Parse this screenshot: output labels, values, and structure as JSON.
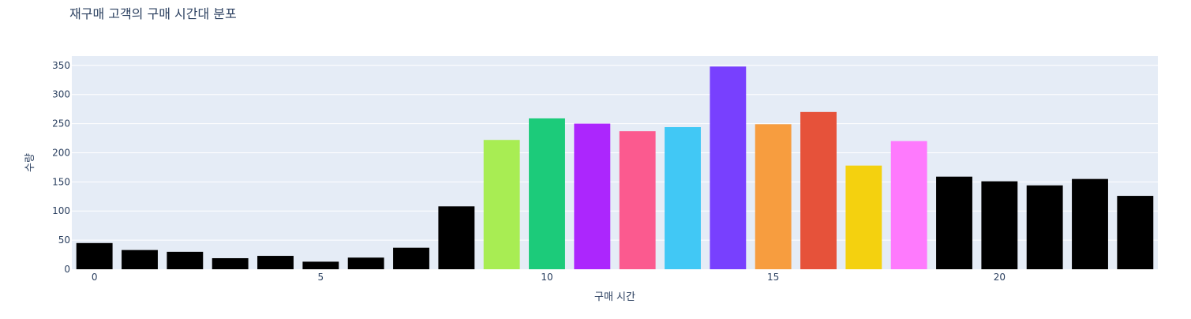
{
  "chart_data": {
    "type": "bar",
    "title": "재구매 고객의 구매 시간대 분포",
    "xlabel": "구매 시간",
    "ylabel": "수량",
    "x": [
      0,
      1,
      2,
      3,
      4,
      5,
      6,
      7,
      8,
      9,
      10,
      11,
      12,
      13,
      14,
      15,
      16,
      17,
      18,
      19,
      20,
      21,
      22,
      23
    ],
    "values": [
      45,
      33,
      30,
      19,
      23,
      13,
      20,
      37,
      108,
      222,
      259,
      250,
      237,
      244,
      348,
      249,
      270,
      178,
      220,
      159,
      151,
      144,
      155,
      126
    ],
    "colors": [
      "#000000",
      "#000000",
      "#000000",
      "#000000",
      "#000000",
      "#000000",
      "#000000",
      "#000000",
      "#000000",
      "#a8ed53",
      "#1ccb7a",
      "#ac26fd",
      "#fb5a8f",
      "#41c8f5",
      "#7840fe",
      "#f79d3f",
      "#e6523a",
      "#f4d10f",
      "#fe7afd",
      "#000000",
      "#000000",
      "#000000",
      "#000000",
      "#000000"
    ],
    "xticks": [
      0,
      5,
      10,
      15,
      20
    ],
    "yticks": [
      0,
      50,
      100,
      150,
      200,
      250,
      300,
      350
    ],
    "xlim": [
      -0.5,
      23.5
    ],
    "ylim": [
      0,
      366
    ],
    "plot_bg": "#e5ecf6",
    "grid": true
  }
}
